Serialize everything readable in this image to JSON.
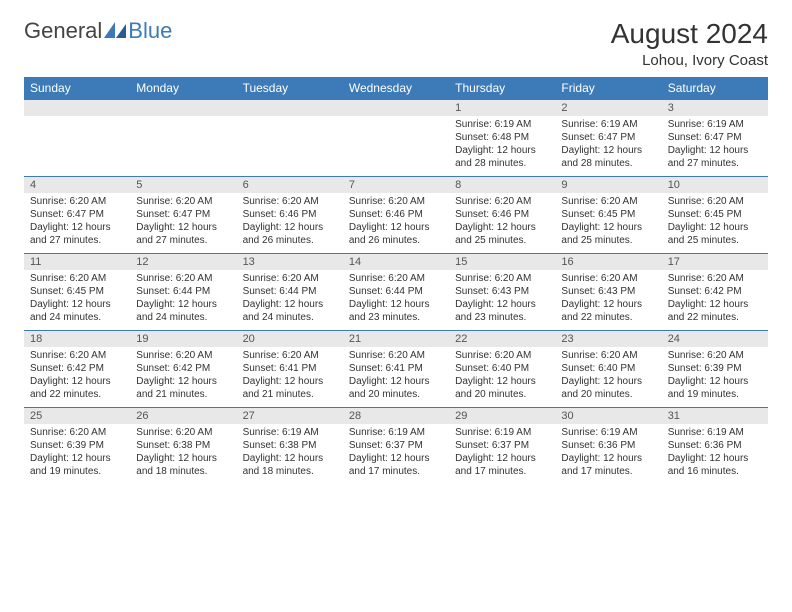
{
  "brand": {
    "general": "General",
    "blue": "Blue"
  },
  "title": "August 2024",
  "location": "Lohou, Ivory Coast",
  "colors": {
    "header_bg": "#3d7ab8",
    "header_fg": "#ffffff",
    "daynum_bg": "#e8e8e8",
    "cell_border": "#3d7ab8",
    "text": "#333333",
    "page_bg": "#ffffff"
  },
  "typography": {
    "title_fontsize": 28,
    "location_fontsize": 15,
    "weekday_fontsize": 12,
    "daynum_fontsize": 11,
    "body_fontsize": 10
  },
  "weekdays": [
    "Sunday",
    "Monday",
    "Tuesday",
    "Wednesday",
    "Thursday",
    "Friday",
    "Saturday"
  ],
  "weeks": [
    [
      null,
      null,
      null,
      null,
      {
        "n": "1",
        "sr": "Sunrise: 6:19 AM",
        "ss": "Sunset: 6:48 PM",
        "d1": "Daylight: 12 hours",
        "d2": "and 28 minutes."
      },
      {
        "n": "2",
        "sr": "Sunrise: 6:19 AM",
        "ss": "Sunset: 6:47 PM",
        "d1": "Daylight: 12 hours",
        "d2": "and 28 minutes."
      },
      {
        "n": "3",
        "sr": "Sunrise: 6:19 AM",
        "ss": "Sunset: 6:47 PM",
        "d1": "Daylight: 12 hours",
        "d2": "and 27 minutes."
      }
    ],
    [
      {
        "n": "4",
        "sr": "Sunrise: 6:20 AM",
        "ss": "Sunset: 6:47 PM",
        "d1": "Daylight: 12 hours",
        "d2": "and 27 minutes."
      },
      {
        "n": "5",
        "sr": "Sunrise: 6:20 AM",
        "ss": "Sunset: 6:47 PM",
        "d1": "Daylight: 12 hours",
        "d2": "and 27 minutes."
      },
      {
        "n": "6",
        "sr": "Sunrise: 6:20 AM",
        "ss": "Sunset: 6:46 PM",
        "d1": "Daylight: 12 hours",
        "d2": "and 26 minutes."
      },
      {
        "n": "7",
        "sr": "Sunrise: 6:20 AM",
        "ss": "Sunset: 6:46 PM",
        "d1": "Daylight: 12 hours",
        "d2": "and 26 minutes."
      },
      {
        "n": "8",
        "sr": "Sunrise: 6:20 AM",
        "ss": "Sunset: 6:46 PM",
        "d1": "Daylight: 12 hours",
        "d2": "and 25 minutes."
      },
      {
        "n": "9",
        "sr": "Sunrise: 6:20 AM",
        "ss": "Sunset: 6:45 PM",
        "d1": "Daylight: 12 hours",
        "d2": "and 25 minutes."
      },
      {
        "n": "10",
        "sr": "Sunrise: 6:20 AM",
        "ss": "Sunset: 6:45 PM",
        "d1": "Daylight: 12 hours",
        "d2": "and 25 minutes."
      }
    ],
    [
      {
        "n": "11",
        "sr": "Sunrise: 6:20 AM",
        "ss": "Sunset: 6:45 PM",
        "d1": "Daylight: 12 hours",
        "d2": "and 24 minutes."
      },
      {
        "n": "12",
        "sr": "Sunrise: 6:20 AM",
        "ss": "Sunset: 6:44 PM",
        "d1": "Daylight: 12 hours",
        "d2": "and 24 minutes."
      },
      {
        "n": "13",
        "sr": "Sunrise: 6:20 AM",
        "ss": "Sunset: 6:44 PM",
        "d1": "Daylight: 12 hours",
        "d2": "and 24 minutes."
      },
      {
        "n": "14",
        "sr": "Sunrise: 6:20 AM",
        "ss": "Sunset: 6:44 PM",
        "d1": "Daylight: 12 hours",
        "d2": "and 23 minutes."
      },
      {
        "n": "15",
        "sr": "Sunrise: 6:20 AM",
        "ss": "Sunset: 6:43 PM",
        "d1": "Daylight: 12 hours",
        "d2": "and 23 minutes."
      },
      {
        "n": "16",
        "sr": "Sunrise: 6:20 AM",
        "ss": "Sunset: 6:43 PM",
        "d1": "Daylight: 12 hours",
        "d2": "and 22 minutes."
      },
      {
        "n": "17",
        "sr": "Sunrise: 6:20 AM",
        "ss": "Sunset: 6:42 PM",
        "d1": "Daylight: 12 hours",
        "d2": "and 22 minutes."
      }
    ],
    [
      {
        "n": "18",
        "sr": "Sunrise: 6:20 AM",
        "ss": "Sunset: 6:42 PM",
        "d1": "Daylight: 12 hours",
        "d2": "and 22 minutes."
      },
      {
        "n": "19",
        "sr": "Sunrise: 6:20 AM",
        "ss": "Sunset: 6:42 PM",
        "d1": "Daylight: 12 hours",
        "d2": "and 21 minutes."
      },
      {
        "n": "20",
        "sr": "Sunrise: 6:20 AM",
        "ss": "Sunset: 6:41 PM",
        "d1": "Daylight: 12 hours",
        "d2": "and 21 minutes."
      },
      {
        "n": "21",
        "sr": "Sunrise: 6:20 AM",
        "ss": "Sunset: 6:41 PM",
        "d1": "Daylight: 12 hours",
        "d2": "and 20 minutes."
      },
      {
        "n": "22",
        "sr": "Sunrise: 6:20 AM",
        "ss": "Sunset: 6:40 PM",
        "d1": "Daylight: 12 hours",
        "d2": "and 20 minutes."
      },
      {
        "n": "23",
        "sr": "Sunrise: 6:20 AM",
        "ss": "Sunset: 6:40 PM",
        "d1": "Daylight: 12 hours",
        "d2": "and 20 minutes."
      },
      {
        "n": "24",
        "sr": "Sunrise: 6:20 AM",
        "ss": "Sunset: 6:39 PM",
        "d1": "Daylight: 12 hours",
        "d2": "and 19 minutes."
      }
    ],
    [
      {
        "n": "25",
        "sr": "Sunrise: 6:20 AM",
        "ss": "Sunset: 6:39 PM",
        "d1": "Daylight: 12 hours",
        "d2": "and 19 minutes."
      },
      {
        "n": "26",
        "sr": "Sunrise: 6:20 AM",
        "ss": "Sunset: 6:38 PM",
        "d1": "Daylight: 12 hours",
        "d2": "and 18 minutes."
      },
      {
        "n": "27",
        "sr": "Sunrise: 6:19 AM",
        "ss": "Sunset: 6:38 PM",
        "d1": "Daylight: 12 hours",
        "d2": "and 18 minutes."
      },
      {
        "n": "28",
        "sr": "Sunrise: 6:19 AM",
        "ss": "Sunset: 6:37 PM",
        "d1": "Daylight: 12 hours",
        "d2": "and 17 minutes."
      },
      {
        "n": "29",
        "sr": "Sunrise: 6:19 AM",
        "ss": "Sunset: 6:37 PM",
        "d1": "Daylight: 12 hours",
        "d2": "and 17 minutes."
      },
      {
        "n": "30",
        "sr": "Sunrise: 6:19 AM",
        "ss": "Sunset: 6:36 PM",
        "d1": "Daylight: 12 hours",
        "d2": "and 17 minutes."
      },
      {
        "n": "31",
        "sr": "Sunrise: 6:19 AM",
        "ss": "Sunset: 6:36 PM",
        "d1": "Daylight: 12 hours",
        "d2": "and 16 minutes."
      }
    ]
  ]
}
